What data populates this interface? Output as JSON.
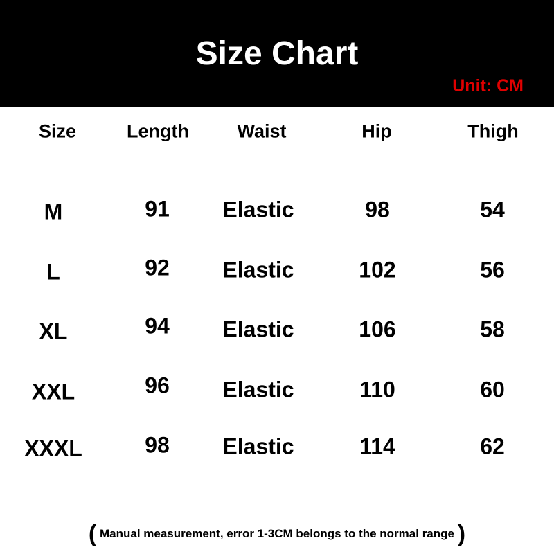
{
  "header": {
    "title": "Size Chart",
    "unit": "Unit: CM",
    "bar_color": "#000000",
    "unit_color": "#e00000"
  },
  "table": {
    "columns": [
      "Size",
      "Length",
      "Waist",
      "Hip",
      "Thigh"
    ],
    "rows": [
      [
        "M",
        "91",
        "Elastic",
        "98",
        "54"
      ],
      [
        "L",
        "92",
        "Elastic",
        "102",
        "56"
      ],
      [
        "XL",
        "94",
        "Elastic",
        "106",
        "58"
      ],
      [
        "XXL",
        "96",
        "Elastic",
        "110",
        "60"
      ],
      [
        "XXXL",
        "98",
        "Elastic",
        "114",
        "62"
      ]
    ]
  },
  "footer": {
    "open": "(",
    "note": "Manual measurement, error 1-3CM belongs to the normal range",
    "close": ")"
  }
}
